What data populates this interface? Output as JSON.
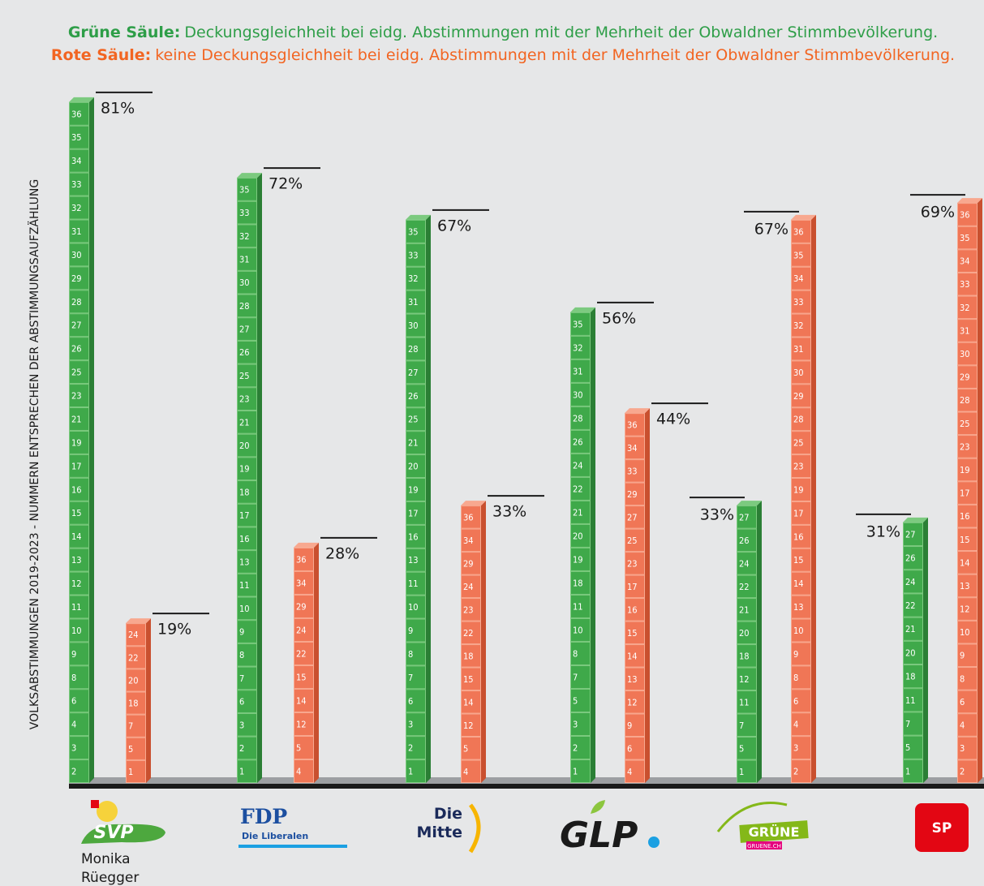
{
  "chart_data": {
    "type": "bar",
    "y_axis_label": "VOLKSABSTIMMUNGEN 2019-2023 - NUMMERN ENTSPRECHEN DER ABSTIMMUNGSAUFZÄHLUNG",
    "series": [
      {
        "name": "Grüne Säule:",
        "description": "Deckungsgleichheit bei eidg. Abstimmungen mit der Mehrheit der Obwaldner Stimmbevölkerung.",
        "color": "#3fa94a",
        "title_color": "#2e9e48",
        "values": [
          81,
          72,
          67,
          56,
          33,
          31
        ],
        "value_labels": [
          "81%",
          "72%",
          "67%",
          "56%",
          "33%",
          "31%"
        ],
        "blocks": [
          [
            2,
            3,
            4,
            6,
            8,
            9,
            10,
            11,
            12,
            13,
            14,
            15,
            16,
            17,
            19,
            21,
            23,
            25,
            26,
            27,
            28,
            29,
            30,
            31,
            32,
            33,
            34,
            35,
            36
          ],
          [
            1,
            2,
            3,
            6,
            7,
            8,
            9,
            10,
            11,
            13,
            16,
            17,
            18,
            19,
            20,
            21,
            23,
            25,
            26,
            27,
            28,
            30,
            31,
            32,
            33,
            35
          ],
          [
            1,
            2,
            3,
            6,
            7,
            8,
            9,
            10,
            11,
            13,
            16,
            17,
            19,
            20,
            21,
            25,
            26,
            27,
            28,
            30,
            31,
            32,
            33,
            35
          ],
          [
            1,
            2,
            3,
            5,
            7,
            8,
            10,
            11,
            18,
            19,
            20,
            21,
            22,
            24,
            26,
            28,
            30,
            31,
            32,
            35
          ],
          [
            1,
            5,
            7,
            11,
            12,
            18,
            20,
            21,
            22,
            24,
            26,
            27
          ],
          [
            1,
            5,
            7,
            11,
            18,
            20,
            21,
            22,
            24,
            26,
            27
          ]
        ]
      },
      {
        "name": "Rote Säule:",
        "description": "keine Deckungsgleichheit bei eidg. Abstimmungen mit der Mehrheit der Obwaldner Stimmbevölkerung.",
        "color": "#f07656",
        "title_color": "#f26522",
        "values": [
          19,
          28,
          33,
          44,
          67,
          69
        ],
        "value_labels": [
          "19%",
          "28%",
          "33%",
          "44%",
          "67%",
          "69%"
        ],
        "blocks": [
          [
            1,
            5,
            7,
            18,
            20,
            22,
            24
          ],
          [
            4,
            5,
            12,
            14,
            15,
            22,
            24,
            29,
            34,
            36
          ],
          [
            4,
            5,
            12,
            14,
            15,
            18,
            22,
            23,
            24,
            29,
            34,
            36
          ],
          [
            4,
            6,
            9,
            12,
            13,
            14,
            15,
            16,
            17,
            23,
            25,
            27,
            29,
            33,
            34,
            36
          ],
          [
            2,
            3,
            4,
            6,
            8,
            9,
            10,
            13,
            14,
            15,
            16,
            17,
            19,
            23,
            25,
            28,
            29,
            30,
            31,
            32,
            33,
            34,
            35,
            36
          ],
          [
            2,
            3,
            4,
            6,
            8,
            9,
            10,
            12,
            13,
            14,
            15,
            16,
            17,
            19,
            23,
            25,
            28,
            29,
            30,
            31,
            32,
            33,
            34,
            35,
            36
          ]
        ]
      }
    ],
    "logos": [
      [
        "SVP",
        "Monika",
        "Rüegger"
      ],
      [
        "FDP",
        "Die Liberalen"
      ],
      [
        "Die",
        "Mitte"
      ],
      [
        "GLP"
      ],
      [
        "GRÜNE",
        "GRUENE.CH"
      ],
      [
        "SP"
      ]
    ]
  }
}
